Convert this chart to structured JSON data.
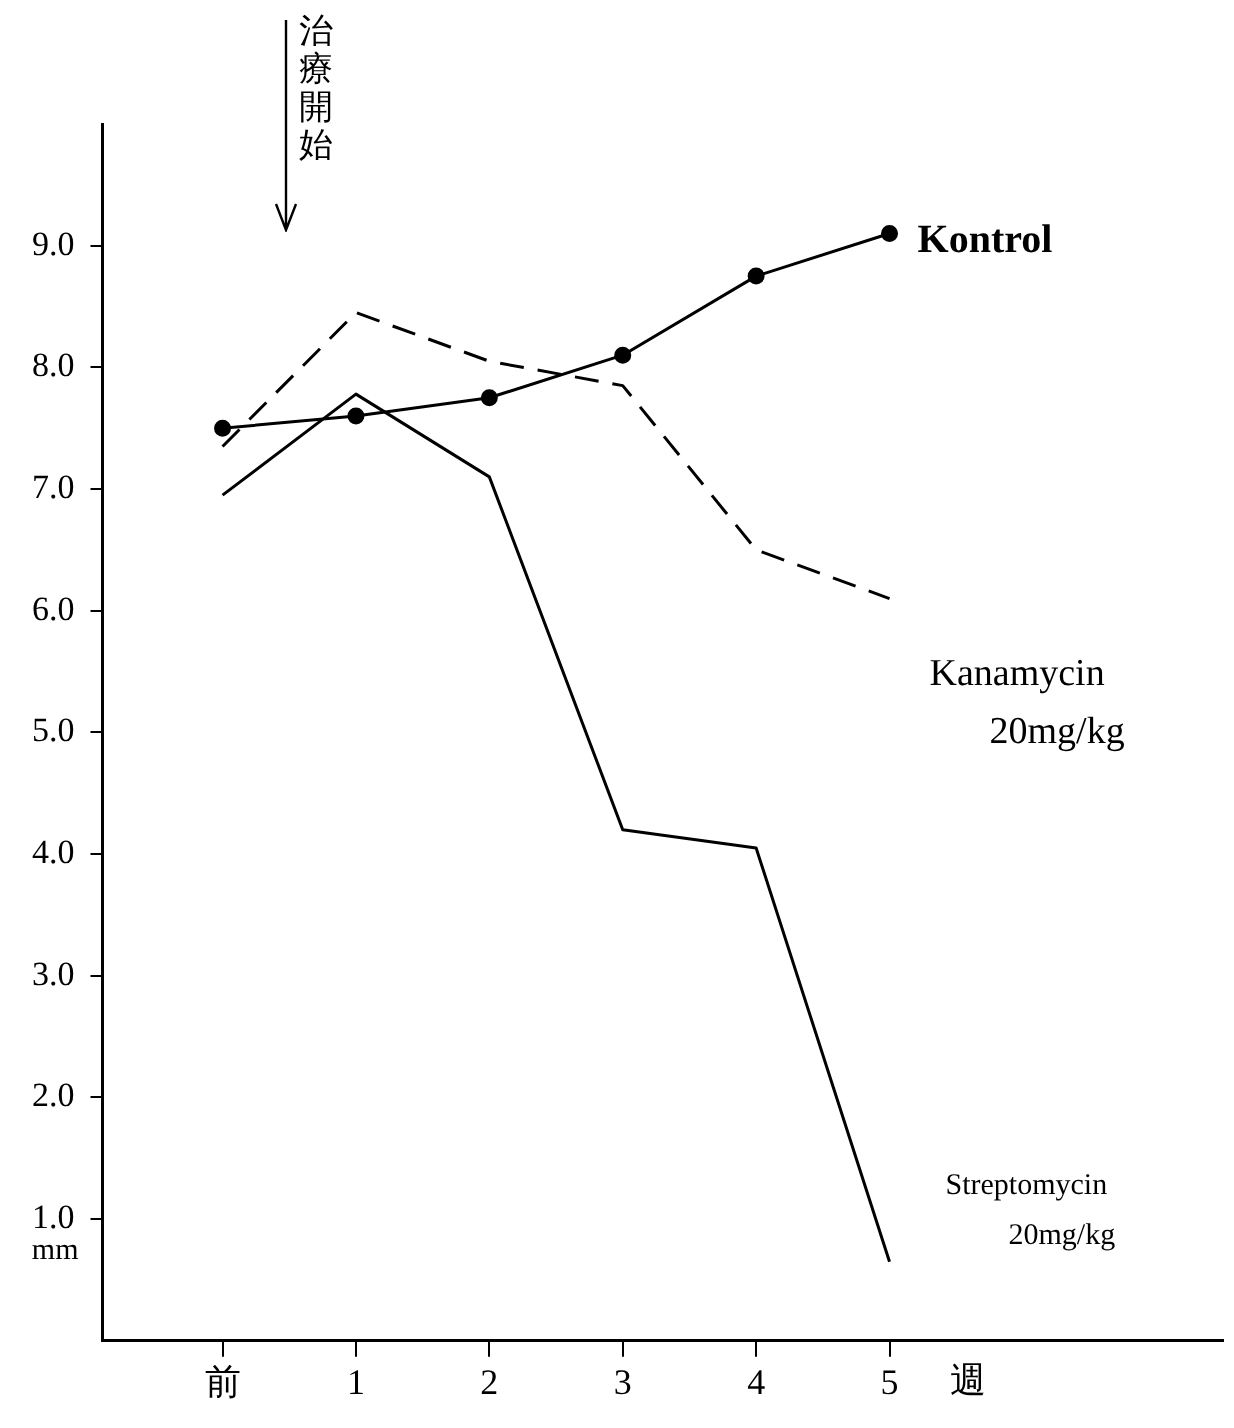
{
  "chart_data": {
    "type": "line",
    "xlabel": "週",
    "ylabel": "mm",
    "x": [
      0,
      1,
      2,
      3,
      4,
      5
    ],
    "xlim": [
      -0.9,
      7.5
    ],
    "xticks": [
      {
        "value": 0,
        "label": "前"
      },
      1,
      2,
      3,
      4,
      5
    ],
    "ylim": [
      0,
      10
    ],
    "yticks": [
      {
        "value": 1,
        "label": "1.0"
      },
      {
        "value": 2,
        "label": "2.0"
      },
      {
        "value": 3,
        "label": "3.0"
      },
      {
        "value": 4,
        "label": "4.0"
      },
      {
        "value": 5,
        "label": "5.0"
      },
      {
        "value": 6,
        "label": "6.0"
      },
      {
        "value": 7,
        "label": "7.0"
      },
      {
        "value": 8,
        "label": "8.0"
      },
      {
        "value": 9,
        "label": "9.0"
      }
    ],
    "grid": false,
    "legend": false,
    "series": [
      {
        "name": "Kontrol",
        "color": "#000000",
        "marker": "circle",
        "line_style": "solid",
        "values": [
          7.5,
          7.6,
          7.75,
          8.1,
          8.75,
          9.1
        ]
      },
      {
        "name": "Kanamycin 20mg/kg",
        "color": "#000000",
        "marker": "none",
        "line_style": "dashed",
        "values": [
          7.35,
          8.45,
          8.05,
          7.85,
          6.5,
          6.1
        ]
      },
      {
        "name": "Streptomycin 20mg/kg",
        "color": "#000000",
        "marker": "none",
        "line_style": "solid",
        "values": [
          6.95,
          7.78,
          7.1,
          4.2,
          4.05,
          0.65
        ]
      }
    ],
    "annotations": [
      "治療開始"
    ]
  }
}
